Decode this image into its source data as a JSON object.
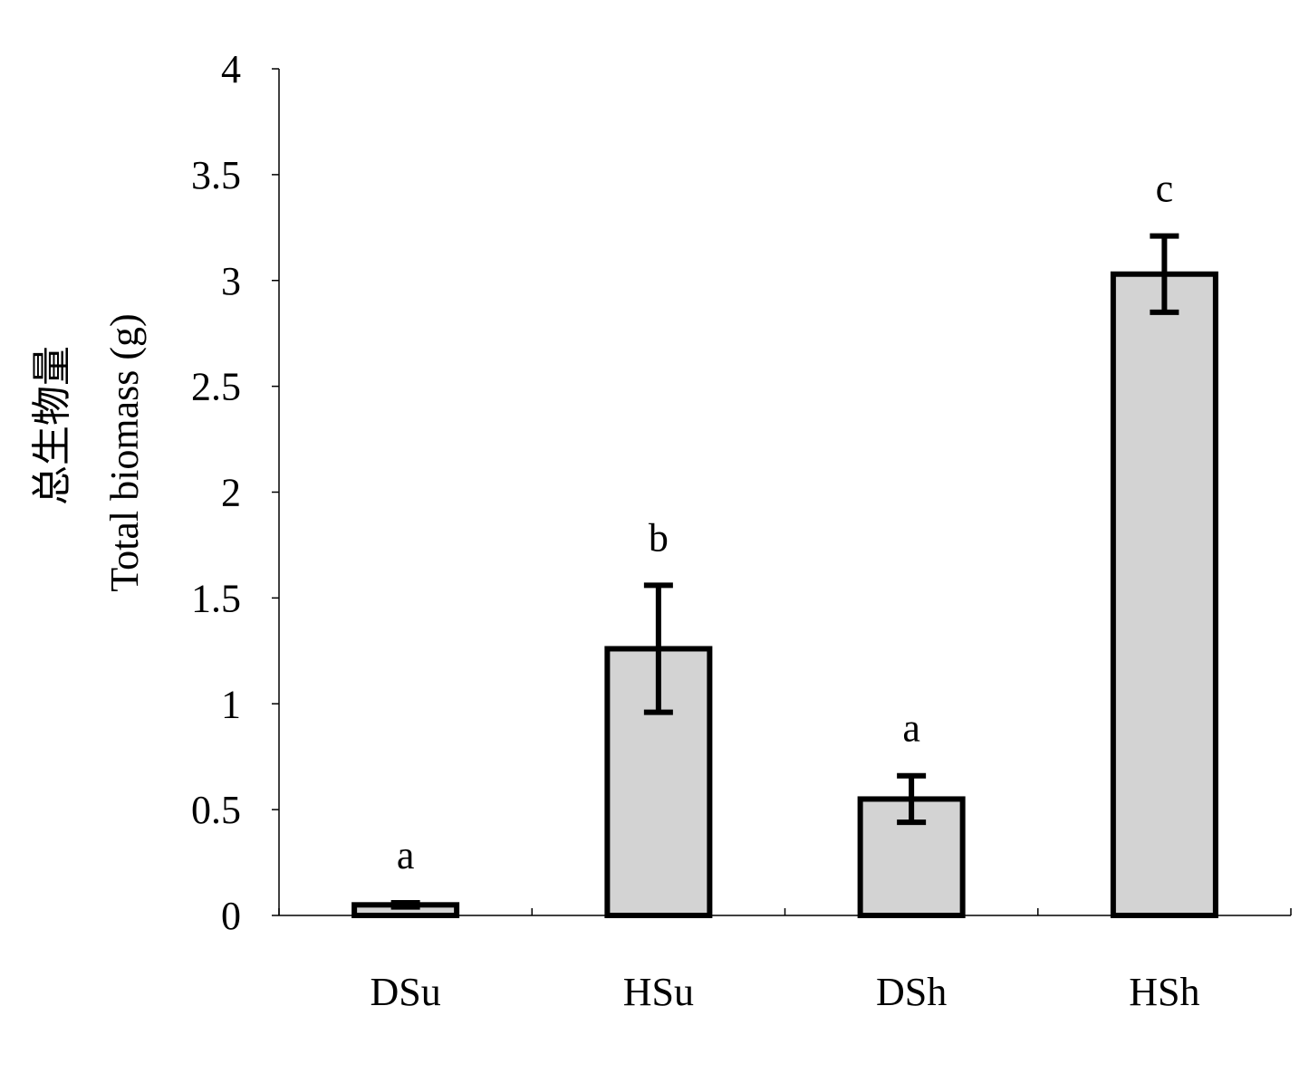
{
  "chart_data": {
    "type": "bar",
    "title": "",
    "xlabel": "",
    "ylabel_line1": "总生物量",
    "ylabel_line2": "Total biomass (g)",
    "ylim": [
      0,
      4
    ],
    "yticks": [
      "0",
      "0.5",
      "1",
      "1.5",
      "2",
      "2.5",
      "3",
      "3.5",
      "4"
    ],
    "categories": [
      "DSu",
      "HSu",
      "DSh",
      "HSh"
    ],
    "values": [
      0.05,
      1.26,
      0.55,
      3.03
    ],
    "errors": [
      0.01,
      0.3,
      0.11,
      0.18
    ],
    "significance": [
      "a",
      "b",
      "a",
      "c"
    ],
    "bar_color": "#d3d3d3",
    "grid": false,
    "legend": "none"
  }
}
